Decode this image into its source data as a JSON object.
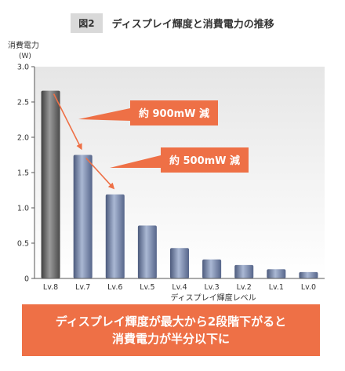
{
  "header": {
    "figure_label": "図2",
    "title": "ディスプレイ輝度と消費電力の推移"
  },
  "chart_data": {
    "type": "bar",
    "ylabel": "消費電力",
    "yunit": "(W)",
    "xlabel": "ディスプレイ輝度レベル",
    "categories": [
      "Lv.8",
      "Lv.7",
      "Lv.6",
      "Lv.5",
      "Lv.4",
      "Lv.3",
      "Lv.2",
      "Lv.1",
      "Lv.0"
    ],
    "values": [
      2.66,
      1.75,
      1.19,
      0.75,
      0.43,
      0.27,
      0.19,
      0.13,
      0.09
    ],
    "ylim": [
      0,
      3.0
    ],
    "yticks": [
      "0",
      "0.5",
      "1.0",
      "1.5",
      "2.0",
      "2.5",
      "3.0"
    ],
    "grid": false,
    "annotations": [
      {
        "text": "約 900mW 減",
        "from_category": "Lv.8",
        "to_category": "Lv.7"
      },
      {
        "text": "約 500mW 減",
        "from_category": "Lv.7",
        "to_category": "Lv.6"
      }
    ],
    "colors": {
      "bar_first": "#6b6b6b",
      "bar": "#8090b0",
      "annotation": "#ee7046",
      "plot_bg_top": "#e8e8e8",
      "plot_bg_bottom": "#ffffff"
    }
  },
  "footer": {
    "line1": "ディスプレイ輝度が最大から2段階下がると",
    "line2": "消費電力が半分以下に"
  }
}
